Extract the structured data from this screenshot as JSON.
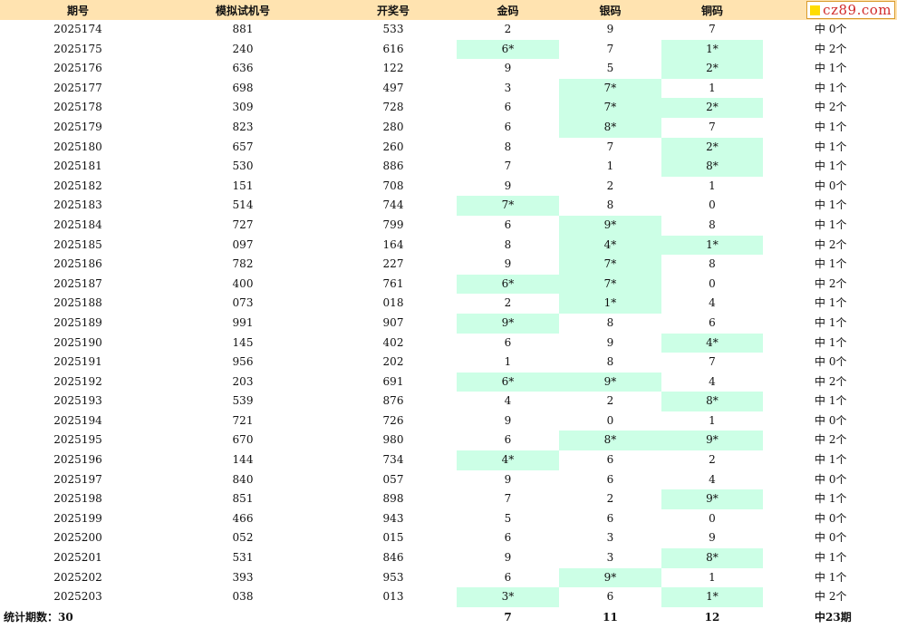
{
  "headers": {
    "period": "期号",
    "simulated": "模拟试机号",
    "draw": "开奖号",
    "gold": "金码",
    "silver": "银码",
    "copper": "铜码"
  },
  "brand": {
    "text": "cz89.com",
    "square_color": "#ffdd00",
    "text_color": "#d12a2a"
  },
  "highlight_color": "#ccffe6",
  "rows": [
    {
      "period": "2025174",
      "sim": "881",
      "draw": "533",
      "gold": "2",
      "silver": "9",
      "copper": "7",
      "hit": "中 0个",
      "gold_hl": false,
      "silver_hl": false,
      "copper_hl": false
    },
    {
      "period": "2025175",
      "sim": "240",
      "draw": "616",
      "gold": "6*",
      "silver": "7",
      "copper": "1*",
      "hit": "中 2个",
      "gold_hl": true,
      "silver_hl": false,
      "copper_hl": true
    },
    {
      "period": "2025176",
      "sim": "636",
      "draw": "122",
      "gold": "9",
      "silver": "5",
      "copper": "2*",
      "hit": "中 1个",
      "gold_hl": false,
      "silver_hl": false,
      "copper_hl": true
    },
    {
      "period": "2025177",
      "sim": "698",
      "draw": "497",
      "gold": "3",
      "silver": "7*",
      "copper": "1",
      "hit": "中 1个",
      "gold_hl": false,
      "silver_hl": true,
      "copper_hl": false
    },
    {
      "period": "2025178",
      "sim": "309",
      "draw": "728",
      "gold": "6",
      "silver": "7*",
      "copper": "2*",
      "hit": "中 2个",
      "gold_hl": false,
      "silver_hl": true,
      "copper_hl": true
    },
    {
      "period": "2025179",
      "sim": "823",
      "draw": "280",
      "gold": "6",
      "silver": "8*",
      "copper": "7",
      "hit": "中 1个",
      "gold_hl": false,
      "silver_hl": true,
      "copper_hl": false
    },
    {
      "period": "2025180",
      "sim": "657",
      "draw": "260",
      "gold": "8",
      "silver": "7",
      "copper": "2*",
      "hit": "中 1个",
      "gold_hl": false,
      "silver_hl": false,
      "copper_hl": true
    },
    {
      "period": "2025181",
      "sim": "530",
      "draw": "886",
      "gold": "7",
      "silver": "1",
      "copper": "8*",
      "hit": "中 1个",
      "gold_hl": false,
      "silver_hl": false,
      "copper_hl": true
    },
    {
      "period": "2025182",
      "sim": "151",
      "draw": "708",
      "gold": "9",
      "silver": "2",
      "copper": "1",
      "hit": "中 0个",
      "gold_hl": false,
      "silver_hl": false,
      "copper_hl": false
    },
    {
      "period": "2025183",
      "sim": "514",
      "draw": "744",
      "gold": "7*",
      "silver": "8",
      "copper": "0",
      "hit": "中 1个",
      "gold_hl": true,
      "silver_hl": false,
      "copper_hl": false
    },
    {
      "period": "2025184",
      "sim": "727",
      "draw": "799",
      "gold": "6",
      "silver": "9*",
      "copper": "8",
      "hit": "中 1个",
      "gold_hl": false,
      "silver_hl": true,
      "copper_hl": false
    },
    {
      "period": "2025185",
      "sim": "097",
      "draw": "164",
      "gold": "8",
      "silver": "4*",
      "copper": "1*",
      "hit": "中 2个",
      "gold_hl": false,
      "silver_hl": true,
      "copper_hl": true
    },
    {
      "period": "2025186",
      "sim": "782",
      "draw": "227",
      "gold": "9",
      "silver": "7*",
      "copper": "8",
      "hit": "中 1个",
      "gold_hl": false,
      "silver_hl": true,
      "copper_hl": false
    },
    {
      "period": "2025187",
      "sim": "400",
      "draw": "761",
      "gold": "6*",
      "silver": "7*",
      "copper": "0",
      "hit": "中 2个",
      "gold_hl": true,
      "silver_hl": true,
      "copper_hl": false
    },
    {
      "period": "2025188",
      "sim": "073",
      "draw": "018",
      "gold": "2",
      "silver": "1*",
      "copper": "4",
      "hit": "中 1个",
      "gold_hl": false,
      "silver_hl": true,
      "copper_hl": false
    },
    {
      "period": "2025189",
      "sim": "991",
      "draw": "907",
      "gold": "9*",
      "silver": "8",
      "copper": "6",
      "hit": "中 1个",
      "gold_hl": true,
      "silver_hl": false,
      "copper_hl": false
    },
    {
      "period": "2025190",
      "sim": "145",
      "draw": "402",
      "gold": "6",
      "silver": "9",
      "copper": "4*",
      "hit": "中 1个",
      "gold_hl": false,
      "silver_hl": false,
      "copper_hl": true
    },
    {
      "period": "2025191",
      "sim": "956",
      "draw": "202",
      "gold": "1",
      "silver": "8",
      "copper": "7",
      "hit": "中 0个",
      "gold_hl": false,
      "silver_hl": false,
      "copper_hl": false
    },
    {
      "period": "2025192",
      "sim": "203",
      "draw": "691",
      "gold": "6*",
      "silver": "9*",
      "copper": "4",
      "hit": "中 2个",
      "gold_hl": true,
      "silver_hl": true,
      "copper_hl": false
    },
    {
      "period": "2025193",
      "sim": "539",
      "draw": "876",
      "gold": "4",
      "silver": "2",
      "copper": "8*",
      "hit": "中 1个",
      "gold_hl": false,
      "silver_hl": false,
      "copper_hl": true
    },
    {
      "period": "2025194",
      "sim": "721",
      "draw": "726",
      "gold": "9",
      "silver": "0",
      "copper": "1",
      "hit": "中 0个",
      "gold_hl": false,
      "silver_hl": false,
      "copper_hl": false
    },
    {
      "period": "2025195",
      "sim": "670",
      "draw": "980",
      "gold": "6",
      "silver": "8*",
      "copper": "9*",
      "hit": "中 2个",
      "gold_hl": false,
      "silver_hl": true,
      "copper_hl": true
    },
    {
      "period": "2025196",
      "sim": "144",
      "draw": "734",
      "gold": "4*",
      "silver": "6",
      "copper": "2",
      "hit": "中 1个",
      "gold_hl": true,
      "silver_hl": false,
      "copper_hl": false
    },
    {
      "period": "2025197",
      "sim": "840",
      "draw": "057",
      "gold": "9",
      "silver": "6",
      "copper": "4",
      "hit": "中 0个",
      "gold_hl": false,
      "silver_hl": false,
      "copper_hl": false
    },
    {
      "period": "2025198",
      "sim": "851",
      "draw": "898",
      "gold": "7",
      "silver": "2",
      "copper": "9*",
      "hit": "中 1个",
      "gold_hl": false,
      "silver_hl": false,
      "copper_hl": true
    },
    {
      "period": "2025199",
      "sim": "466",
      "draw": "943",
      "gold": "5",
      "silver": "6",
      "copper": "0",
      "hit": "中 0个",
      "gold_hl": false,
      "silver_hl": false,
      "copper_hl": false
    },
    {
      "period": "2025200",
      "sim": "052",
      "draw": "015",
      "gold": "6",
      "silver": "3",
      "copper": "9",
      "hit": "中 0个",
      "gold_hl": false,
      "silver_hl": false,
      "copper_hl": false
    },
    {
      "period": "2025201",
      "sim": "531",
      "draw": "846",
      "gold": "9",
      "silver": "3",
      "copper": "8*",
      "hit": "中 1个",
      "gold_hl": false,
      "silver_hl": false,
      "copper_hl": true
    },
    {
      "period": "2025202",
      "sim": "393",
      "draw": "953",
      "gold": "6",
      "silver": "9*",
      "copper": "1",
      "hit": "中 1个",
      "gold_hl": false,
      "silver_hl": true,
      "copper_hl": false
    },
    {
      "period": "2025203",
      "sim": "038",
      "draw": "013",
      "gold": "3*",
      "silver": "6",
      "copper": "1*",
      "hit": "中 2个",
      "gold_hl": true,
      "silver_hl": false,
      "copper_hl": true
    }
  ],
  "summary": {
    "label": "统计期数：30",
    "gold": "7",
    "silver": "11",
    "copper": "12",
    "hits": "中23期"
  }
}
